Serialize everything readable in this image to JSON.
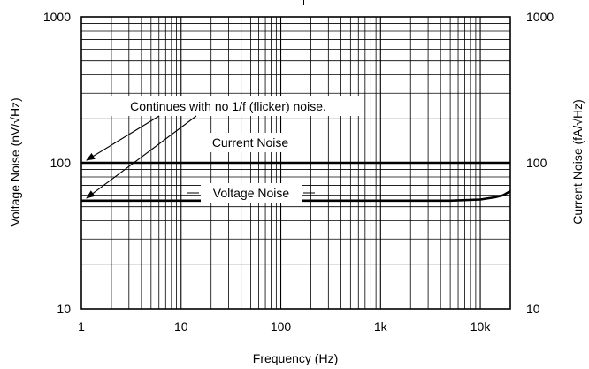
{
  "chart_data": {
    "type": "line",
    "xlabel": "Frequency (Hz)",
    "ylabel_left": "Voltage Noise (nV/√Hz)",
    "ylabel_right": "Current Noise (fA/√Hz)",
    "x_scale": "log",
    "y_scale": "log",
    "xlim": [
      1,
      20000
    ],
    "ylim": [
      10,
      1000
    ],
    "grid": true,
    "x_ticks": [
      {
        "value": 1,
        "label": "1"
      },
      {
        "value": 10,
        "label": "10"
      },
      {
        "value": 100,
        "label": "100"
      },
      {
        "value": 1000,
        "label": "1k"
      },
      {
        "value": 10000,
        "label": "10k"
      }
    ],
    "y_ticks_left": [
      {
        "value": 10,
        "label": "10"
      },
      {
        "value": 100,
        "label": "100"
      },
      {
        "value": 1000,
        "label": "1000"
      }
    ],
    "y_ticks_right": [
      {
        "value": 10,
        "label": "10"
      },
      {
        "value": 100,
        "label": "100"
      },
      {
        "value": 1000,
        "label": "1000"
      }
    ],
    "series": [
      {
        "name": "Current Noise",
        "x": [
          1,
          20000
        ],
        "y": [
          100,
          100
        ]
      },
      {
        "name": "Voltage Noise",
        "x": [
          1,
          100,
          1000,
          5000,
          10000,
          14000,
          17000,
          20000
        ],
        "y": [
          55,
          55,
          55,
          55,
          56,
          58,
          60,
          64
        ]
      }
    ],
    "annotations": [
      {
        "text": "Continues with no 1/f (flicker) noise."
      },
      {
        "text": "Current Noise"
      },
      {
        "text": "Voltage Noise"
      }
    ]
  }
}
